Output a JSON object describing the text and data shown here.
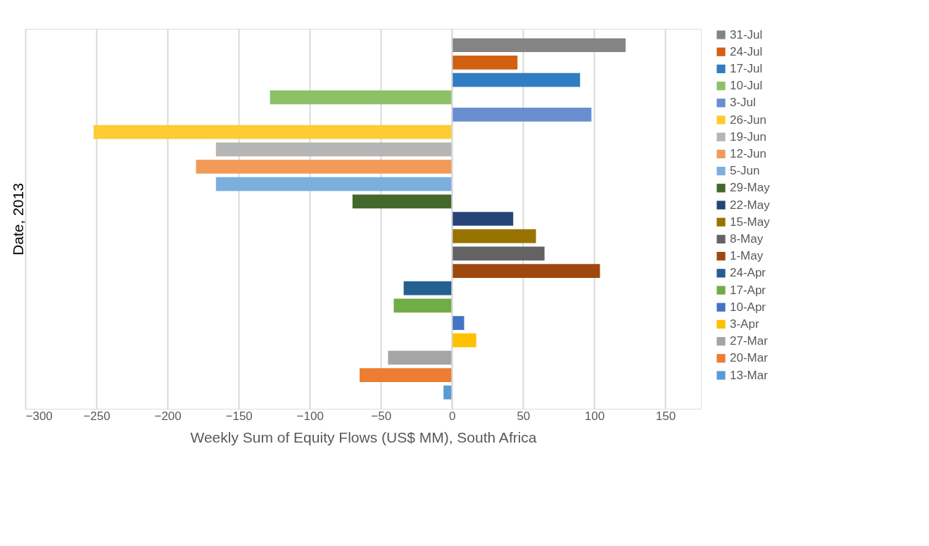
{
  "chart_data": {
    "type": "bar",
    "orientation": "horizontal",
    "xlabel": "Weekly Sum of Equity Flows (US$ MM), South Africa",
    "ylabel": "Date, 2013",
    "categories": [
      null
    ],
    "series": [
      {
        "name": "31-Jul",
        "color": "#848484",
        "values": [
          122
        ]
      },
      {
        "name": "24-Jul",
        "color": "#d26012",
        "values": [
          46
        ]
      },
      {
        "name": "17-Jul",
        "color": "#317dc2",
        "values": [
          90
        ]
      },
      {
        "name": "10-Jul",
        "color": "#8cc168",
        "values": [
          -128
        ]
      },
      {
        "name": "3-Jul",
        "color": "#698ed0",
        "values": [
          98
        ]
      },
      {
        "name": "26-Jun",
        "color": "#ffcb32",
        "values": [
          -252
        ]
      },
      {
        "name": "19-Jun",
        "color": "#b5b5b5",
        "values": [
          -166
        ]
      },
      {
        "name": "12-Jun",
        "color": "#f29a5a",
        "values": [
          -180
        ]
      },
      {
        "name": "5-Jun",
        "color": "#7cafdd",
        "values": [
          -166
        ]
      },
      {
        "name": "29-May",
        "color": "#43682b",
        "values": [
          -70
        ]
      },
      {
        "name": "22-May",
        "color": "#264478",
        "values": [
          43
        ]
      },
      {
        "name": "15-May",
        "color": "#997300",
        "values": [
          59
        ]
      },
      {
        "name": "8-May",
        "color": "#636363",
        "values": [
          65
        ]
      },
      {
        "name": "1-May",
        "color": "#9e480e",
        "values": [
          104
        ]
      },
      {
        "name": "24-Apr",
        "color": "#255e91",
        "values": [
          -34
        ]
      },
      {
        "name": "17-Apr",
        "color": "#70ad47",
        "values": [
          -41
        ]
      },
      {
        "name": "10-Apr",
        "color": "#4472c4",
        "values": [
          8.5
        ]
      },
      {
        "name": "3-Apr",
        "color": "#ffc000",
        "values": [
          17
        ]
      },
      {
        "name": "27-Mar",
        "color": "#a5a5a5",
        "values": [
          -45
        ]
      },
      {
        "name": "20-Mar",
        "color": "#ed7d31",
        "values": [
          -65
        ]
      },
      {
        "name": "13-Mar",
        "color": "#5b9bd5",
        "values": [
          -6
        ]
      }
    ],
    "xlim": [
      -300,
      175
    ],
    "xticks": [
      -300,
      -250,
      -200,
      -150,
      -100,
      -50,
      0,
      50,
      100,
      150
    ],
    "grid": "x",
    "legend": "right",
    "tick_labels": "x"
  }
}
